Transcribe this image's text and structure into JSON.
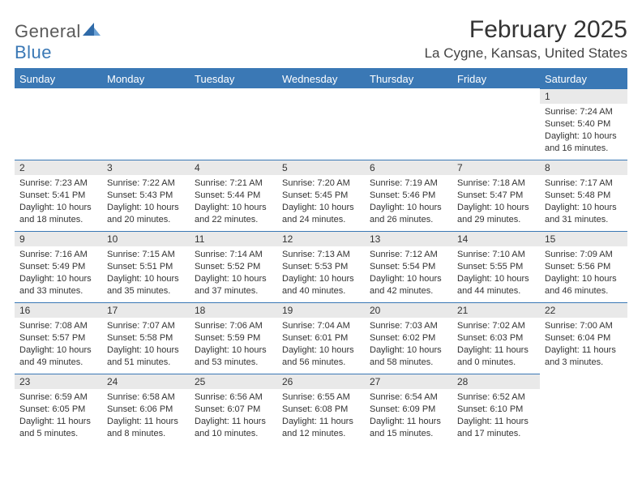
{
  "logo": {
    "line1": "General",
    "line2": "Blue"
  },
  "title": "February 2025",
  "location": "La Cygne, Kansas, United States",
  "colors": {
    "header_bg": "#3a78b5",
    "header_text": "#ffffff",
    "daynum_bg": "#e9e9e9",
    "line": "#3a78b5"
  },
  "weekdays": [
    "Sunday",
    "Monday",
    "Tuesday",
    "Wednesday",
    "Thursday",
    "Friday",
    "Saturday"
  ],
  "weeks": [
    [
      null,
      null,
      null,
      null,
      null,
      null,
      {
        "n": "1",
        "sunrise": "Sunrise: 7:24 AM",
        "sunset": "Sunset: 5:40 PM",
        "daylight": "Daylight: 10 hours and 16 minutes."
      }
    ],
    [
      {
        "n": "2",
        "sunrise": "Sunrise: 7:23 AM",
        "sunset": "Sunset: 5:41 PM",
        "daylight": "Daylight: 10 hours and 18 minutes."
      },
      {
        "n": "3",
        "sunrise": "Sunrise: 7:22 AM",
        "sunset": "Sunset: 5:43 PM",
        "daylight": "Daylight: 10 hours and 20 minutes."
      },
      {
        "n": "4",
        "sunrise": "Sunrise: 7:21 AM",
        "sunset": "Sunset: 5:44 PM",
        "daylight": "Daylight: 10 hours and 22 minutes."
      },
      {
        "n": "5",
        "sunrise": "Sunrise: 7:20 AM",
        "sunset": "Sunset: 5:45 PM",
        "daylight": "Daylight: 10 hours and 24 minutes."
      },
      {
        "n": "6",
        "sunrise": "Sunrise: 7:19 AM",
        "sunset": "Sunset: 5:46 PM",
        "daylight": "Daylight: 10 hours and 26 minutes."
      },
      {
        "n": "7",
        "sunrise": "Sunrise: 7:18 AM",
        "sunset": "Sunset: 5:47 PM",
        "daylight": "Daylight: 10 hours and 29 minutes."
      },
      {
        "n": "8",
        "sunrise": "Sunrise: 7:17 AM",
        "sunset": "Sunset: 5:48 PM",
        "daylight": "Daylight: 10 hours and 31 minutes."
      }
    ],
    [
      {
        "n": "9",
        "sunrise": "Sunrise: 7:16 AM",
        "sunset": "Sunset: 5:49 PM",
        "daylight": "Daylight: 10 hours and 33 minutes."
      },
      {
        "n": "10",
        "sunrise": "Sunrise: 7:15 AM",
        "sunset": "Sunset: 5:51 PM",
        "daylight": "Daylight: 10 hours and 35 minutes."
      },
      {
        "n": "11",
        "sunrise": "Sunrise: 7:14 AM",
        "sunset": "Sunset: 5:52 PM",
        "daylight": "Daylight: 10 hours and 37 minutes."
      },
      {
        "n": "12",
        "sunrise": "Sunrise: 7:13 AM",
        "sunset": "Sunset: 5:53 PM",
        "daylight": "Daylight: 10 hours and 40 minutes."
      },
      {
        "n": "13",
        "sunrise": "Sunrise: 7:12 AM",
        "sunset": "Sunset: 5:54 PM",
        "daylight": "Daylight: 10 hours and 42 minutes."
      },
      {
        "n": "14",
        "sunrise": "Sunrise: 7:10 AM",
        "sunset": "Sunset: 5:55 PM",
        "daylight": "Daylight: 10 hours and 44 minutes."
      },
      {
        "n": "15",
        "sunrise": "Sunrise: 7:09 AM",
        "sunset": "Sunset: 5:56 PM",
        "daylight": "Daylight: 10 hours and 46 minutes."
      }
    ],
    [
      {
        "n": "16",
        "sunrise": "Sunrise: 7:08 AM",
        "sunset": "Sunset: 5:57 PM",
        "daylight": "Daylight: 10 hours and 49 minutes."
      },
      {
        "n": "17",
        "sunrise": "Sunrise: 7:07 AM",
        "sunset": "Sunset: 5:58 PM",
        "daylight": "Daylight: 10 hours and 51 minutes."
      },
      {
        "n": "18",
        "sunrise": "Sunrise: 7:06 AM",
        "sunset": "Sunset: 5:59 PM",
        "daylight": "Daylight: 10 hours and 53 minutes."
      },
      {
        "n": "19",
        "sunrise": "Sunrise: 7:04 AM",
        "sunset": "Sunset: 6:01 PM",
        "daylight": "Daylight: 10 hours and 56 minutes."
      },
      {
        "n": "20",
        "sunrise": "Sunrise: 7:03 AM",
        "sunset": "Sunset: 6:02 PM",
        "daylight": "Daylight: 10 hours and 58 minutes."
      },
      {
        "n": "21",
        "sunrise": "Sunrise: 7:02 AM",
        "sunset": "Sunset: 6:03 PM",
        "daylight": "Daylight: 11 hours and 0 minutes."
      },
      {
        "n": "22",
        "sunrise": "Sunrise: 7:00 AM",
        "sunset": "Sunset: 6:04 PM",
        "daylight": "Daylight: 11 hours and 3 minutes."
      }
    ],
    [
      {
        "n": "23",
        "sunrise": "Sunrise: 6:59 AM",
        "sunset": "Sunset: 6:05 PM",
        "daylight": "Daylight: 11 hours and 5 minutes."
      },
      {
        "n": "24",
        "sunrise": "Sunrise: 6:58 AM",
        "sunset": "Sunset: 6:06 PM",
        "daylight": "Daylight: 11 hours and 8 minutes."
      },
      {
        "n": "25",
        "sunrise": "Sunrise: 6:56 AM",
        "sunset": "Sunset: 6:07 PM",
        "daylight": "Daylight: 11 hours and 10 minutes."
      },
      {
        "n": "26",
        "sunrise": "Sunrise: 6:55 AM",
        "sunset": "Sunset: 6:08 PM",
        "daylight": "Daylight: 11 hours and 12 minutes."
      },
      {
        "n": "27",
        "sunrise": "Sunrise: 6:54 AM",
        "sunset": "Sunset: 6:09 PM",
        "daylight": "Daylight: 11 hours and 15 minutes."
      },
      {
        "n": "28",
        "sunrise": "Sunrise: 6:52 AM",
        "sunset": "Sunset: 6:10 PM",
        "daylight": "Daylight: 11 hours and 17 minutes."
      },
      null
    ]
  ]
}
